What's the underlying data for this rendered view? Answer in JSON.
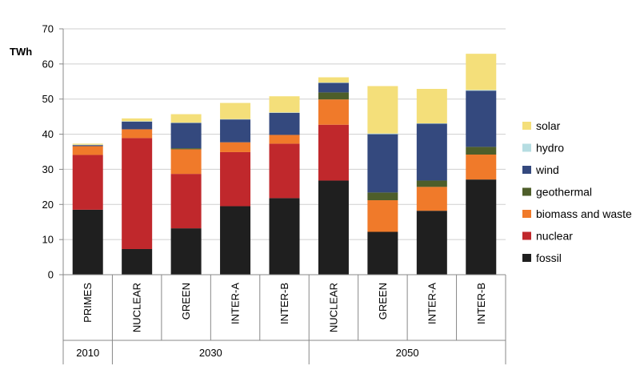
{
  "chart_data": {
    "type": "bar",
    "stacked": true,
    "ylabel": "TWh",
    "ylim": [
      0,
      70
    ],
    "yticks": [
      0,
      10,
      20,
      30,
      40,
      50,
      60,
      70
    ],
    "categories": [
      "PRIMES",
      "NUCLEAR",
      "GREEN",
      "INTER-A",
      "INTER-B",
      "NUCLEAR",
      "GREEN",
      "INTER-A",
      "INTER-B"
    ],
    "groups": [
      {
        "label": "2010",
        "span": 1
      },
      {
        "label": "2030",
        "span": 4
      },
      {
        "label": "2050",
        "span": 4
      }
    ],
    "series": [
      {
        "name": "fossil",
        "color": "#1f1f1f",
        "values": [
          18.5,
          7.3,
          13.2,
          19.5,
          21.8,
          26.8,
          12.2,
          18.2,
          27.1
        ]
      },
      {
        "name": "nuclear",
        "color": "#c0282c",
        "values": [
          15.6,
          31.6,
          15.5,
          15.4,
          15.5,
          15.9,
          0,
          0,
          0
        ]
      },
      {
        "name": "biomass and waste",
        "color": "#f07a2a",
        "values": [
          2.5,
          2.5,
          7.0,
          2.8,
          2.5,
          7.2,
          9.0,
          6.8,
          7.1
        ]
      },
      {
        "name": "geothermal",
        "color": "#4e5e2a",
        "values": [
          0,
          0,
          0.3,
          0,
          0,
          2.0,
          2.2,
          1.8,
          2.2
        ]
      },
      {
        "name": "wind",
        "color": "#34497e",
        "values": [
          0.3,
          2.2,
          7.2,
          6.5,
          6.3,
          2.7,
          16.6,
          16.2,
          16.0
        ]
      },
      {
        "name": "hydro",
        "color": "#b6dde2",
        "values": [
          0.1,
          0.1,
          0.1,
          0.1,
          0.1,
          0.1,
          0.2,
          0.1,
          0.2
        ]
      },
      {
        "name": "solar",
        "color": "#f4df7a",
        "values": [
          0.3,
          0.8,
          2.4,
          4.6,
          4.6,
          1.5,
          13.5,
          9.8,
          10.3
        ]
      }
    ],
    "legend": {
      "placement": "right",
      "order": [
        "solar",
        "hydro",
        "wind",
        "geothermal",
        "biomass and waste",
        "nuclear",
        "fossil"
      ]
    },
    "grid": true
  }
}
